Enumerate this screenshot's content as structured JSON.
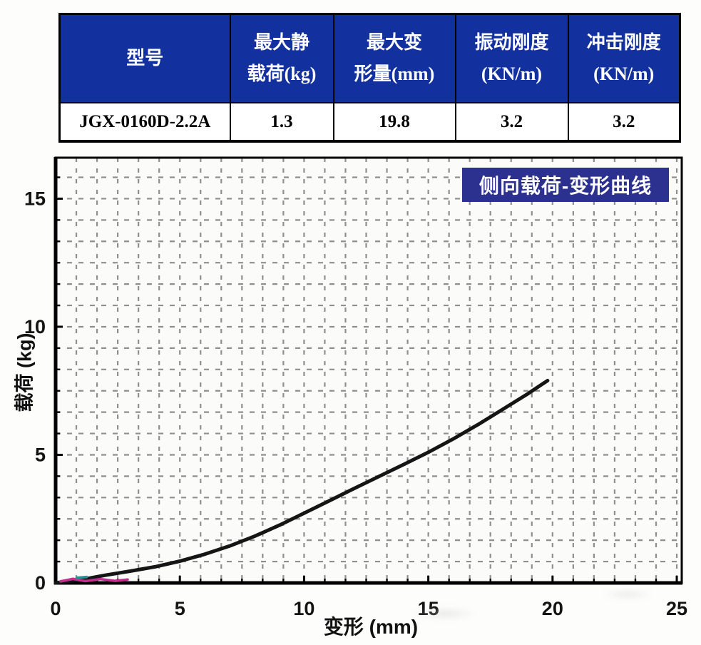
{
  "colors": {
    "table_header_bg": "#12309e",
    "table_header_text": "#ffffff",
    "legend_bg": "#2c3190",
    "curve": "#151515",
    "grid": "#8f8f8f",
    "artifact_magenta": "#c2308f",
    "artifact_teal": "#2a9090"
  },
  "table": {
    "columns": [
      {
        "lines": [
          "型号"
        ]
      },
      {
        "lines": [
          "最大静",
          "载荷(kg)"
        ]
      },
      {
        "lines": [
          "最大变",
          "形量(mm)"
        ]
      },
      {
        "lines": [
          "振动刚度",
          "(KN/m)"
        ]
      },
      {
        "lines": [
          "冲击刚度",
          "(KN/m)"
        ]
      }
    ],
    "row": [
      "JGX-0160D-2.2A",
      "1.3",
      "19.8",
      "3.2",
      "3.2"
    ]
  },
  "chart_data": {
    "type": "line",
    "title": "侧向载荷-变形曲线",
    "xlabel": "变形 (mm)",
    "ylabel": "载荷 (kg)",
    "xlim": [
      0,
      25.2
    ],
    "ylim": [
      0,
      16.6
    ],
    "xticks": [
      0,
      5,
      10,
      15,
      20,
      25
    ],
    "yticks": [
      0,
      5,
      10,
      15
    ],
    "grid": "dashed gray, 6 minor cells per 5-unit major interval",
    "legend_position": "top-right inside plot",
    "series": [
      {
        "name": "侧向载荷-变形曲线",
        "color": "#151515",
        "points": [
          [
            0,
            0
          ],
          [
            1,
            0.12
          ],
          [
            2,
            0.3
          ],
          [
            3,
            0.46
          ],
          [
            4,
            0.63
          ],
          [
            5,
            0.85
          ],
          [
            6,
            1.12
          ],
          [
            7,
            1.44
          ],
          [
            8,
            1.82
          ],
          [
            9,
            2.25
          ],
          [
            10,
            2.72
          ],
          [
            11,
            3.2
          ],
          [
            12,
            3.68
          ],
          [
            13,
            4.15
          ],
          [
            14,
            4.62
          ],
          [
            15,
            5.1
          ],
          [
            16,
            5.62
          ],
          [
            17,
            6.18
          ],
          [
            18,
            6.78
          ],
          [
            19,
            7.38
          ],
          [
            19.8,
            7.9
          ]
        ]
      },
      {
        "name": "origin-artifact-magenta",
        "color": "#c2308f",
        "points": [
          [
            0.2,
            0.06
          ],
          [
            0.7,
            0.16
          ],
          [
            1.2,
            0.07
          ],
          [
            1.8,
            0.15
          ],
          [
            2.4,
            0.08
          ],
          [
            2.9,
            0.13
          ]
        ]
      },
      {
        "name": "origin-artifact-teal",
        "color": "#2a9090",
        "points": [
          [
            0.85,
            0.2
          ],
          [
            1.25,
            0.23
          ]
        ]
      }
    ]
  }
}
